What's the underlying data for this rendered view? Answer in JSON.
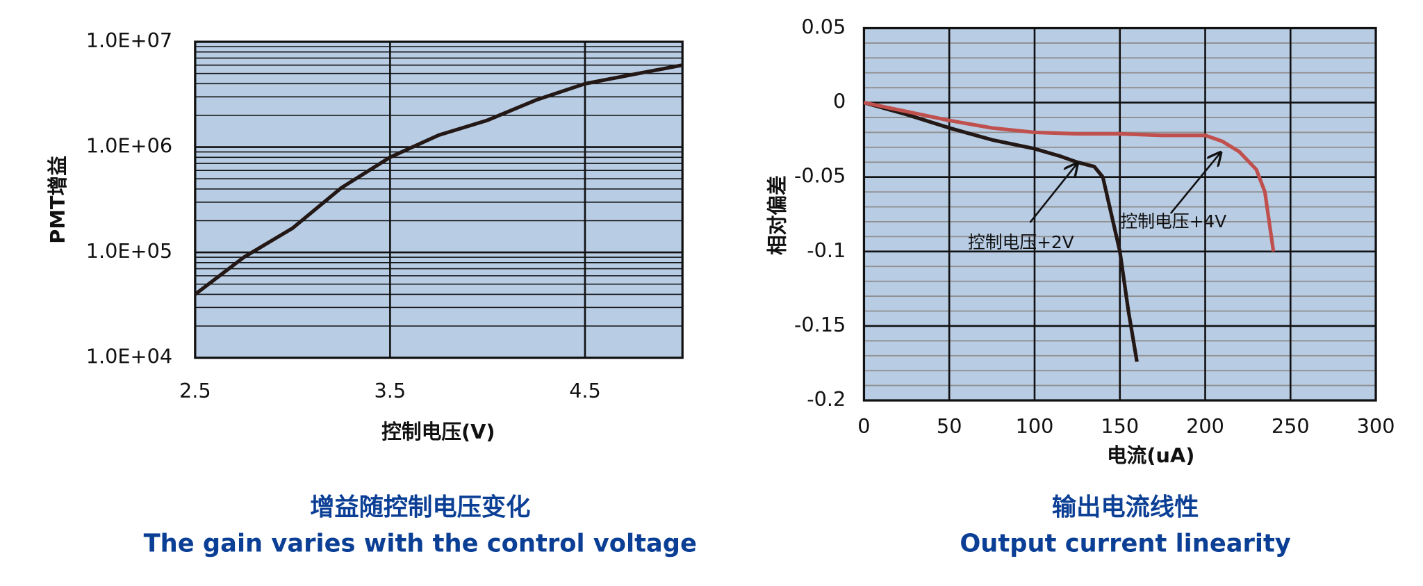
{
  "chart_data": [
    {
      "type": "line",
      "ylog": true,
      "title": "增益随控制电压变化",
      "subtitle": "The gain varies with the control voltage",
      "xlabel": "控制电压(V)",
      "ylabel": "PMT增益",
      "x": [
        2.5,
        2.75,
        3.0,
        3.25,
        3.5,
        3.75,
        4.0,
        4.25,
        4.5,
        4.75,
        5.0
      ],
      "series": [
        {
          "color": "#231815",
          "values": [
            40000,
            90000,
            170000,
            410000,
            800000,
            1300000,
            1800000,
            2800000,
            4000000,
            4900000,
            6000000
          ]
        }
      ],
      "xlim": [
        2.5,
        5.0
      ],
      "xticks": [
        2.5,
        3.5,
        4.5
      ],
      "ylim": [
        10000,
        10000000
      ],
      "yticks": [
        {
          "value": 10000,
          "label": "1.0E+04"
        },
        {
          "value": 100000,
          "label": "1.0E+05"
        },
        {
          "value": 1000000,
          "label": "1.0E+06"
        },
        {
          "value": 10000000,
          "label": "1.0E+07"
        }
      ],
      "grid": true,
      "minor_grid": true,
      "background": "#b8cce4"
    },
    {
      "type": "line",
      "ylog": false,
      "title": "输出电流线性",
      "subtitle": "Output current linearity",
      "xlabel": "电流(uA)",
      "ylabel": "相对偏差",
      "series": [
        {
          "name": "控制电压+2V",
          "color": "#231815",
          "x": [
            0,
            25,
            50,
            75,
            100,
            115,
            125,
            135,
            140,
            145,
            150,
            155,
            160
          ],
          "values": [
            0,
            -0.008,
            -0.017,
            -0.025,
            -0.031,
            -0.036,
            -0.04,
            -0.043,
            -0.05,
            -0.075,
            -0.1,
            -0.14,
            -0.174
          ]
        },
        {
          "name": "控制电压+4V",
          "color": "#c0504d",
          "x": [
            0,
            25,
            50,
            75,
            100,
            125,
            150,
            175,
            200,
            210,
            220,
            230,
            235,
            240
          ],
          "values": [
            0,
            -0.006,
            -0.012,
            -0.017,
            -0.02,
            -0.021,
            -0.021,
            -0.022,
            -0.022,
            -0.026,
            -0.033,
            -0.045,
            -0.06,
            -0.1
          ]
        }
      ],
      "xlim": [
        0,
        300
      ],
      "xticks": [
        0,
        50,
        100,
        150,
        200,
        250,
        300
      ],
      "ylim": [
        -0.2,
        0.05
      ],
      "yticks": [
        0.05,
        0,
        -0.05,
        -0.1,
        -0.15,
        -0.2
      ],
      "grid": true,
      "minor_grid": true,
      "background": "#b8cce4"
    }
  ]
}
